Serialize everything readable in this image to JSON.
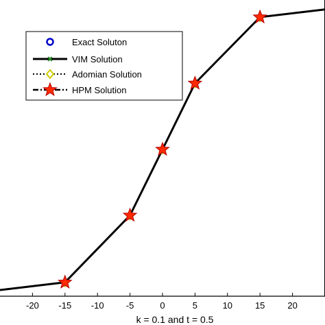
{
  "chart_data": {
    "type": "line",
    "title": "",
    "xlabel": "k = 0.1 and t = 0.5",
    "ylabel": "",
    "xlim": [
      -25,
      25
    ],
    "xticks": [
      -20,
      -15,
      -10,
      -5,
      0,
      5,
      10,
      15,
      20
    ],
    "grid": false,
    "legend_position": "top-left",
    "x": [
      -25,
      -15,
      -5,
      0,
      5,
      15,
      25
    ],
    "series": [
      {
        "name": "Exact Soluton",
        "marker": "circle",
        "color": "#0000cc",
        "line": "none",
        "values": [
          0.0,
          0.03,
          0.29,
          0.546,
          0.803,
          1.06,
          1.09
        ]
      },
      {
        "name": "VIM Solution",
        "marker": "x",
        "color": "#000000",
        "line": "solid",
        "values": [
          0.0,
          0.03,
          0.29,
          0.546,
          0.803,
          1.06,
          1.09
        ]
      },
      {
        "name": "Adomian Solution",
        "marker": "diamond",
        "color": "#cccc00",
        "line": "dotted",
        "values": [
          0.0,
          0.03,
          0.29,
          0.546,
          0.803,
          1.06,
          1.09
        ]
      },
      {
        "name": "HPM Solution",
        "marker": "star",
        "color": "#ff0000",
        "line": "dashdot",
        "values": [
          0.0,
          0.03,
          0.29,
          0.546,
          0.803,
          1.06,
          1.09
        ]
      }
    ],
    "marker_x": [
      -15,
      -5,
      0,
      5,
      15
    ]
  }
}
